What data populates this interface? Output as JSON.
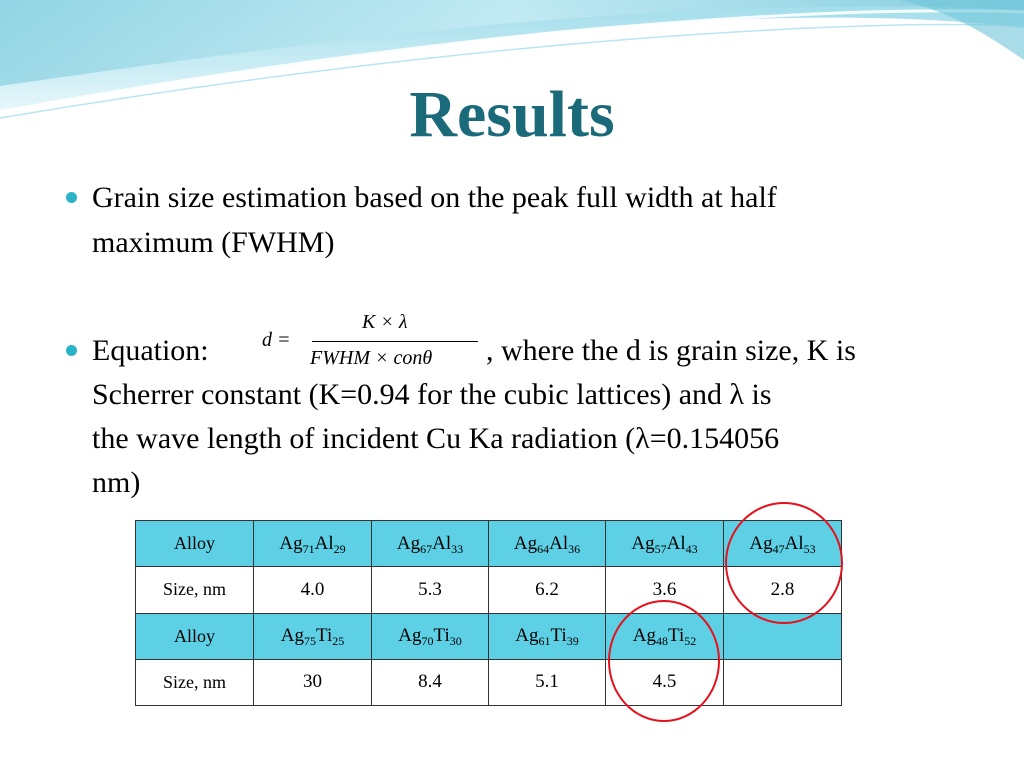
{
  "title": "Results",
  "bullets": {
    "b1_line1": "Grain size estimation based on the peak full width at half",
    "b1_line2": "maximum (FWHM)",
    "b2_label": "Equation:",
    "b2_after_eq": ", where the d is grain size, K is",
    "b2_line2": "Scherrer constant (K=0.94 for the cubic lattices) and λ is",
    "b2_line3": "the wave length of incident Cu Ka radiation (λ=0.154056",
    "b2_line4": "nm)"
  },
  "equation": {
    "lhs": "d =",
    "numerator": "K × λ",
    "denominator": "FWHM × conθ"
  },
  "table": {
    "row1_label": "Alloy",
    "row1": [
      {
        "a": "Ag",
        "an": "71",
        "b": "Al",
        "bn": "29"
      },
      {
        "a": "Ag",
        "an": "67",
        "b": "Al",
        "bn": "33"
      },
      {
        "a": "Ag",
        "an": "64",
        "b": "Al",
        "bn": "36"
      },
      {
        "a": "Ag",
        "an": "57",
        "b": "Al",
        "bn": "43"
      },
      {
        "a": "Ag",
        "an": "47",
        "b": "Al",
        "bn": "53"
      }
    ],
    "row2_label": "Size, nm",
    "row2": [
      "4.0",
      "5.3",
      "6.2",
      "3.6",
      "2.8"
    ],
    "row3_label": "Alloy",
    "row3": [
      {
        "a": "Ag",
        "an": "75",
        "b": "Ti",
        "bn": "25"
      },
      {
        "a": "Ag",
        "an": "70",
        "b": "Ti",
        "bn": "30"
      },
      {
        "a": "Ag",
        "an": "61",
        "b": "Ti",
        "bn": "39"
      },
      {
        "a": "Ag",
        "an": "48",
        "b": "Ti",
        "bn": "52"
      }
    ],
    "row4_label": "Size, nm",
    "row4": [
      "30",
      "8.4",
      "5.1",
      "4.5"
    ]
  },
  "colors": {
    "title": "#1b6a7a",
    "bullet": "#2bb3c7",
    "table_header": "#5ed0e6",
    "highlight_circle": "#e5111b"
  }
}
